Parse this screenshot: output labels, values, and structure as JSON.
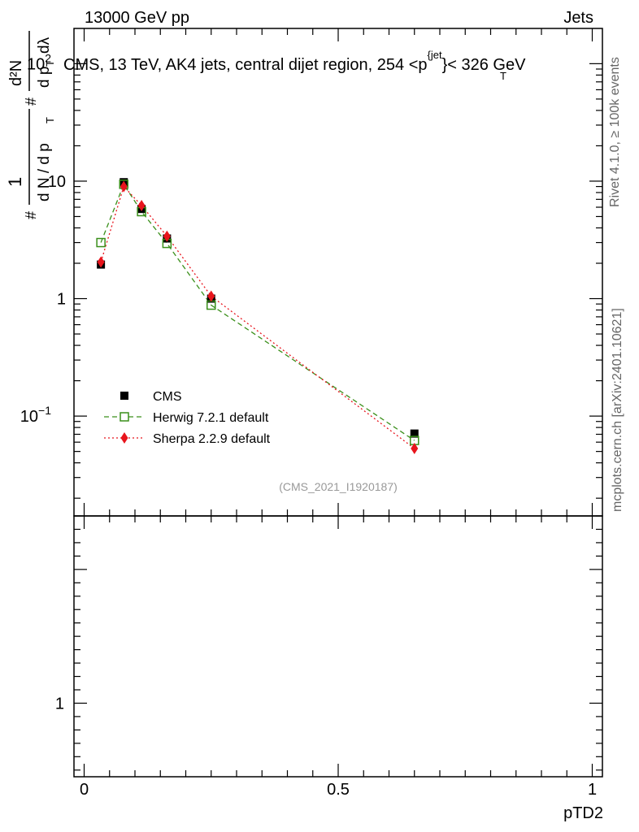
{
  "header": {
    "left": "13000 GeV pp",
    "right": "Jets"
  },
  "side_labels": {
    "rivet": "Rivet 4.1.0, ≥ 100k events",
    "mcplots": "mcplots.cern.ch [arXiv:2401.10621]"
  },
  "chart_data": {
    "type": "line",
    "title": "CMS, 13 TeV, AK4 jets, central dijet region, 254 <p_T^{jet}< 326 GeV",
    "title_main": "CMS, 13 TeV, AK4 jets, central dijet region, 254 <p",
    "title_sup": "{jet",
    "title_sub": "T",
    "title_tail": "}< 326 GeV",
    "analysis_id": "(CMS_2021_I1920187)",
    "xlabel": "pTD2",
    "ylabel": "1/(dN/dp_T) d²N/(dp_T dλ)",
    "ylabel_parts": {
      "hash1": "#",
      "one": "1",
      "dN": "d N / d p",
      "T1": "T",
      "hash2": "#",
      "d2N": "d²N",
      "dp": "d p",
      "T2": "T",
      "dl": "dλ"
    },
    "xlim": [
      -0.02,
      1.02
    ],
    "ylim_log10": [
      -1.85,
      2.3
    ],
    "x_ticks": [
      {
        "value": 0,
        "label": "0"
      },
      {
        "value": 0.5,
        "label": "0.5"
      },
      {
        "value": 1,
        "label": "1"
      }
    ],
    "y_ticks": [
      {
        "exp": 2,
        "label": "10",
        "sup": "2"
      },
      {
        "exp": 1,
        "label": "10",
        "sup": ""
      },
      {
        "exp": 0,
        "label": "1",
        "sup": ""
      },
      {
        "exp": -1,
        "label": "10",
        "sup": "−1"
      }
    ],
    "ratio_panel": {
      "ylim": [
        0.45,
        2.4
      ],
      "ticks": [
        {
          "value": 1,
          "label": "1"
        }
      ]
    },
    "series": [
      {
        "name": "CMS",
        "color": "#000000",
        "marker": "square-filled",
        "x": [
          0.033,
          0.078,
          0.113,
          0.163,
          0.25,
          0.65
        ],
        "y": [
          1.95,
          9.8,
          5.8,
          3.25,
          1.0,
          0.071
        ]
      },
      {
        "name": "Herwig 7.2.1 default",
        "color": "#3a8f1a",
        "marker": "square-open",
        "line": "dashed",
        "x": [
          0.033,
          0.078,
          0.113,
          0.163,
          0.25,
          0.65
        ],
        "y": [
          3.0,
          9.4,
          5.5,
          2.95,
          0.88,
          0.062
        ]
      },
      {
        "name": "Sherpa 2.2.9 default",
        "color": "#e8141c",
        "marker": "diamond-filled",
        "line": "dotted",
        "x": [
          0.033,
          0.078,
          0.113,
          0.163,
          0.25,
          0.65
        ],
        "y": [
          2.05,
          9.0,
          6.2,
          3.4,
          1.05,
          0.053
        ]
      }
    ],
    "legend": {
      "placement": "lower-left",
      "entries": [
        "CMS",
        "Herwig 7.2.1 default",
        "Sherpa 2.2.9 default"
      ]
    }
  }
}
